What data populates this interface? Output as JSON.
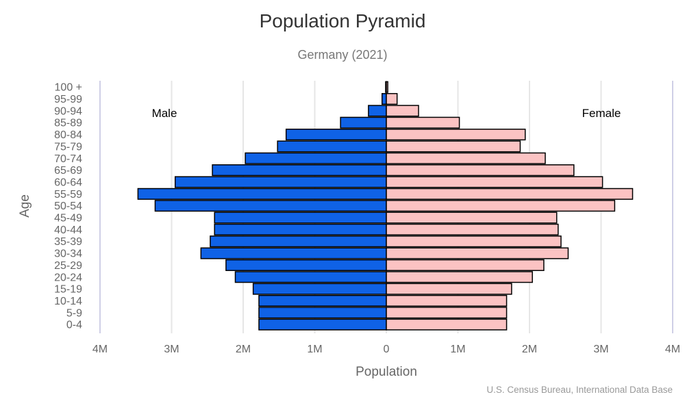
{
  "chart_data": {
    "type": "bar",
    "orientation": "horizontal",
    "title": "Population Pyramid",
    "subtitle": "Germany (2021)",
    "xlabel": "Population",
    "ylabel": "Age",
    "source": "U.S. Census Bureau, International Data Base",
    "x_ticks": [
      "4M",
      "3M",
      "2M",
      "1M",
      "0",
      "1M",
      "2M",
      "3M",
      "4M"
    ],
    "xlim": [
      -4000000,
      4000000
    ],
    "grid": true,
    "categories": [
      "0-4",
      "5-9",
      "10-14",
      "15-19",
      "20-24",
      "25-29",
      "30-34",
      "35-39",
      "40-44",
      "45-49",
      "50-54",
      "55-59",
      "60-64",
      "65-69",
      "70-74",
      "75-79",
      "80-84",
      "85-89",
      "90-94",
      "95-99",
      "100 +"
    ],
    "series": [
      {
        "name": "Male",
        "side": "left",
        "color": "#0F62E6",
        "values": [
          1780000,
          1780000,
          1780000,
          1860000,
          2110000,
          2240000,
          2590000,
          2460000,
          2400000,
          2400000,
          3230000,
          3470000,
          2950000,
          2430000,
          1970000,
          1520000,
          1400000,
          640000,
          250000,
          60000,
          10000
        ]
      },
      {
        "name": "Female",
        "side": "right",
        "color": "#FBC3C3",
        "values": [
          1680000,
          1680000,
          1680000,
          1750000,
          2040000,
          2200000,
          2540000,
          2440000,
          2400000,
          2380000,
          3190000,
          3440000,
          3020000,
          2620000,
          2220000,
          1870000,
          1940000,
          1020000,
          450000,
          150000,
          20000
        ]
      }
    ]
  }
}
